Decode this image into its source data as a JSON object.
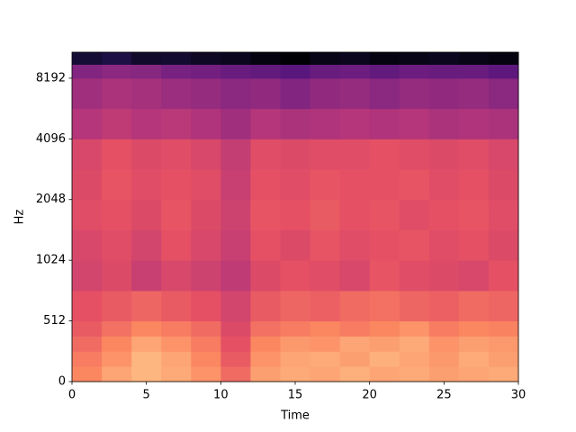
{
  "chart_data": {
    "type": "heatmap",
    "xlabel": "Time",
    "ylabel": "Hz",
    "colormap": "magma",
    "zlim": [
      -80,
      0
    ],
    "yscale": "symlog",
    "ybase": 2,
    "linthresh": 512,
    "xlim": [
      0,
      30
    ],
    "xticks": [
      0,
      5,
      10,
      15,
      20,
      25,
      30
    ],
    "ylim": [
      0,
      11025
    ],
    "yticks": [
      0,
      512,
      1024,
      2048,
      4096,
      8192
    ],
    "xbins": [
      0,
      2,
      4,
      6,
      8,
      10,
      12,
      14,
      16,
      18,
      20,
      22,
      24,
      26,
      28,
      30
    ],
    "ybins": [
      0,
      128,
      256,
      384,
      512,
      724,
      1024,
      1448,
      2048,
      2896,
      4096,
      5793,
      8192,
      9600,
      11025
    ],
    "z": [
      [
        -20,
        -15,
        -12,
        -14,
        -18,
        -25,
        -16,
        -14,
        -15,
        -13,
        -15,
        -14,
        -16,
        -15,
        -14
      ],
      [
        -22,
        -18,
        -12,
        -15,
        -20,
        -28,
        -18,
        -15,
        -14,
        -16,
        -13,
        -15,
        -17,
        -14,
        -16
      ],
      [
        -25,
        -20,
        -15,
        -18,
        -22,
        -30,
        -20,
        -17,
        -18,
        -15,
        -16,
        -14,
        -18,
        -16,
        -17
      ],
      [
        -28,
        -24,
        -20,
        -22,
        -25,
        -32,
        -24,
        -22,
        -20,
        -22,
        -20,
        -18,
        -22,
        -20,
        -21
      ],
      [
        -30,
        -28,
        -26,
        -28,
        -30,
        -34,
        -28,
        -26,
        -27,
        -25,
        -24,
        -26,
        -27,
        -25,
        -26
      ],
      [
        -34,
        -32,
        -36,
        -33,
        -35,
        -38,
        -32,
        -30,
        -31,
        -33,
        -29,
        -31,
        -32,
        -33,
        -30
      ],
      [
        -33,
        -31,
        -34,
        -30,
        -33,
        -36,
        -30,
        -32,
        -29,
        -31,
        -30,
        -29,
        -31,
        -30,
        -32
      ],
      [
        -31,
        -30,
        -32,
        -29,
        -32,
        -35,
        -29,
        -30,
        -28,
        -30,
        -29,
        -31,
        -30,
        -29,
        -31
      ],
      [
        -32,
        -29,
        -31,
        -30,
        -31,
        -36,
        -30,
        -31,
        -29,
        -30,
        -30,
        -29,
        -31,
        -30,
        -32
      ],
      [
        -33,
        -30,
        -32,
        -31,
        -33,
        -37,
        -31,
        -32,
        -31,
        -31,
        -30,
        -31,
        -32,
        -31,
        -33
      ],
      [
        -40,
        -38,
        -40,
        -39,
        -41,
        -44,
        -40,
        -42,
        -41,
        -40,
        -41,
        -40,
        -42,
        -41,
        -42
      ],
      [
        -44,
        -42,
        -43,
        -45,
        -46,
        -48,
        -47,
        -50,
        -47,
        -46,
        -48,
        -46,
        -47,
        -46,
        -48
      ],
      [
        -50,
        -48,
        -49,
        -52,
        -53,
        -55,
        -56,
        -58,
        -55,
        -54,
        -56,
        -54,
        -55,
        -55,
        -57
      ],
      [
        -72,
        -70,
        -74,
        -73,
        -75,
        -76,
        -78,
        -80,
        -77,
        -76,
        -78,
        -77,
        -76,
        -77,
        -78
      ]
    ]
  }
}
